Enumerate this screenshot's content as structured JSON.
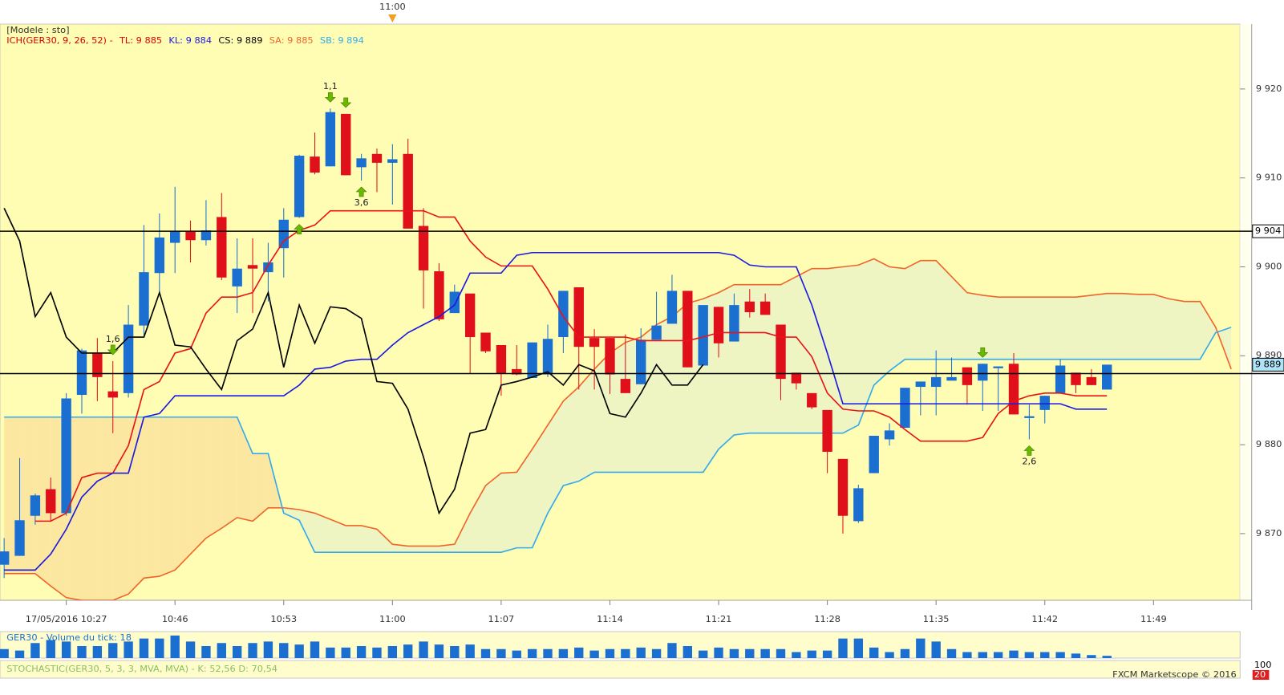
{
  "chart_data": {
    "type": "candlestick",
    "legend_lines": [
      "[Modele : sto]"
    ],
    "indicator": {
      "label": "ICH(GER30, 9, 26, 52) -",
      "color": "#d40000",
      "items": [
        {
          "text": "TL: 9 885",
          "color": "#e00000"
        },
        {
          "text": "KL: 9 884",
          "color": "#1a1ae0"
        },
        {
          "text": "CS: 9 889",
          "color": "#000000"
        },
        {
          "text": "SA: 9 885",
          "color": "#f0662a"
        },
        {
          "text": "SB: 9 894",
          "color": "#33aaee"
        }
      ]
    },
    "cursor": {
      "index": 25,
      "label": "11:00",
      "color": "#f0a020"
    },
    "categories": [
      null,
      null,
      null,
      null,
      "17/05/2016 10:27",
      null,
      null,
      null,
      null,
      null,
      null,
      "10:46",
      null,
      null,
      null,
      null,
      null,
      null,
      "10:53",
      null,
      null,
      null,
      null,
      null,
      null,
      "11:00",
      null,
      null,
      null,
      null,
      null,
      null,
      "11:07",
      null,
      null,
      null,
      null,
      null,
      null,
      "11:14",
      null,
      null,
      null,
      null,
      null,
      null,
      "11:21",
      null,
      null,
      null,
      null,
      null,
      null,
      "11:28",
      null,
      null,
      null,
      null,
      null,
      null,
      "11:35",
      null,
      null,
      null,
      null,
      null,
      null,
      "11:42",
      null,
      null,
      null,
      null,
      null,
      null,
      "11:49",
      null,
      null,
      null,
      null,
      null
    ],
    "ylim": [
      9862.5,
      9927.3
    ],
    "yticks": [
      {
        "value": 9870,
        "label": "9 870"
      },
      {
        "value": 9880,
        "label": "9 880"
      },
      {
        "value": 9890,
        "label": "9 890"
      },
      {
        "value": 9900,
        "label": "9 900"
      },
      {
        "value": 9910,
        "label": "9 910"
      },
      {
        "value": 9920,
        "label": "9 920"
      }
    ],
    "grid": false,
    "background": "#fffdb3",
    "up_color": "#1a6fd0",
    "down_color": "#e0101a",
    "open": [
      9866.5,
      9867.5,
      9872,
      9875,
      9872.3,
      9885.6,
      9890.3,
      9886,
      9885.8,
      9893.4,
      9899.3,
      9902.7,
      9904,
      9903,
      9905.6,
      9897.8,
      9900.2,
      9899.4,
      9902.1,
      9905.6,
      9912.4,
      9911.3,
      9917.2,
      9911.2,
      9912.7,
      9911.7,
      9912.7,
      9904.6,
      9899.5,
      9894.8,
      9897,
      9892.6,
      9891.2,
      9888.5,
      9887.5,
      9887.9,
      9892.1,
      9897.7,
      9892,
      9892,
      9887.4,
      9886.8,
      9891.8,
      9893.6,
      9897.3,
      9888.9,
      9895.5,
      9891.6,
      9896.1,
      9896.1,
      9893.5,
      9888.1,
      9885.8,
      9883.9,
      9878.4,
      9871.4,
      9876.8,
      9880.6,
      9881.9,
      9886.5,
      9886.5,
      9887.2,
      9888.7,
      9887.2,
      9888.6,
      9889.1,
      9883,
      9883.9,
      9885.8,
      9888.1,
      9887.6,
      9886.2,
      null,
      null,
      null,
      null,
      null,
      null,
      null,
      null
    ],
    "high": [
      9869.5,
      9878.5,
      9874.5,
      9876.3,
      9885.8,
      9890.8,
      9892,
      9889.4,
      9895.7,
      9904.7,
      9906,
      9909,
      9905.2,
      9907.5,
      9908.3,
      9903.2,
      9903.2,
      9902.7,
      9906.6,
      9912.6,
      9915.1,
      9917.8,
      9917.2,
      9912.7,
      9913.3,
      9913.8,
      9914.4,
      9906.6,
      9900.4,
      9898,
      9897,
      9892.6,
      9891.2,
      9891.2,
      9891.5,
      9893.5,
      9897.3,
      9897.7,
      9893,
      9892,
      9892.4,
      9893.1,
      9897.2,
      9899.1,
      9897.3,
      9895.7,
      9895.5,
      9897,
      9897.5,
      9897,
      9893.5,
      9888.1,
      9885.8,
      9883.9,
      9878.4,
      9875.5,
      9881,
      9882.4,
      9886.4,
      9887.1,
      9890.6,
      9889.8,
      9888.7,
      9889.1,
      9888.8,
      9890.3,
      9884.5,
      9885.5,
      9889.6,
      9888.1,
      9888.5,
      9889,
      null,
      null,
      null,
      null,
      null,
      null,
      null,
      null
    ],
    "low": [
      9865,
      9867.5,
      9871,
      9871.4,
      9872,
      9883.5,
      9884.9,
      9881.3,
      9885.3,
      9892.1,
      9897,
      9899.3,
      9900.5,
      9902.4,
      9898.5,
      9894.8,
      9894.8,
      9896.1,
      9898.8,
      9905.5,
      9910.4,
      9911.3,
      9910.3,
      9909.7,
      9908.4,
      9907,
      9904.3,
      9895.3,
      9893.9,
      9894.8,
      9888,
      9890.3,
      9885.5,
      9887.8,
      9887.5,
      9887.6,
      9890.3,
      9886.2,
      9886.2,
      9885.7,
      9885.8,
      9886.8,
      9891.8,
      9893.6,
      9888.7,
      9888.9,
      9889.8,
      9891.6,
      9894.3,
      9894.6,
      9885,
      9886.2,
      9884,
      9876.8,
      9870,
      9871.2,
      9876.8,
      9879.9,
      9881.9,
      9883.3,
      9883.3,
      9887.2,
      9884.5,
      9883.8,
      9883.8,
      9883.4,
      9880.6,
      9882.4,
      9885.8,
      9885.8,
      9886.7,
      9886.2,
      null,
      null,
      null,
      null,
      null,
      null,
      null,
      null
    ],
    "close": [
      9868,
      9871.5,
      9874.3,
      9872.3,
      9885.2,
      9890.6,
      9887.6,
      9885.3,
      9893.5,
      9899.4,
      9903.3,
      9904,
      9903,
      9904.1,
      9898.8,
      9899.8,
      9899.8,
      9900.5,
      9905.3,
      9912.5,
      9910.6,
      9917.4,
      9910.3,
      9912.2,
      9911.7,
      9912.1,
      9904.3,
      9899.6,
      9894.1,
      9897.2,
      9892.1,
      9890.5,
      9888,
      9887.9,
      9891.5,
      9891.9,
      9897.3,
      9891,
      9891,
      9887.9,
      9885.8,
      9891.8,
      9893.4,
      9897.3,
      9888.7,
      9895.7,
      9891.4,
      9895.7,
      9894.9,
      9894.6,
      9887.4,
      9886.9,
      9884.2,
      9879.2,
      9872,
      9875.1,
      9881,
      9881.6,
      9886.4,
      9887.1,
      9887.6,
      9887.6,
      9886.7,
      9889.1,
      9888.8,
      9883.4,
      9883.2,
      9885.5,
      9888.9,
      9886.7,
      9886.7,
      9889,
      null,
      null,
      null,
      null,
      null,
      null,
      null,
      null
    ],
    "cloud": {
      "bull_fill": "#eef5c3",
      "bear_fill": "#fce7a0",
      "a": {
        "color": "#f0662a",
        "values": [
          9865.5,
          9865.5,
          9865.5,
          9864.1,
          9862.8,
          9862.5,
          9862.5,
          9862.5,
          9863.2,
          9865,
          9865.2,
          9865.9,
          9867.7,
          9869.5,
          9870.6,
          9871.8,
          9871.4,
          9872.9,
          9872.9,
          9872.7,
          9872.3,
          9871.6,
          9870.9,
          9870.9,
          9870.5,
          9868.8,
          9868.6,
          9868.6,
          9868.6,
          9868.8,
          9872.3,
          9875.4,
          9876.8,
          9876.9,
          9879.5,
          9882.2,
          9884.9,
          9886.5,
          9888.5,
          9890.3,
          9891.5,
          9892.1,
          9893.5,
          9894.4,
          9895.9,
          9896.4,
          9897.1,
          9898,
          9898,
          9898,
          9898,
          9898.9,
          9899.8,
          9899.8,
          9900,
          9900.2,
          9900.9,
          9900,
          9899.8,
          9900.7,
          9900.7,
          9898.9,
          9897.1,
          9896.8,
          9896.6,
          9896.6,
          9896.6,
          9896.6,
          9896.6,
          9896.6,
          9896.8,
          9897,
          9897,
          9896.9,
          9896.9,
          9896.4,
          9896.1,
          9896.1,
          9893.2,
          9888.5
        ]
      },
      "b": {
        "color": "#33aaee",
        "values": [
          9883.1,
          9883.1,
          9883.1,
          9883.1,
          9883.1,
          9883.1,
          9883.1,
          9883.1,
          9883.1,
          9883.1,
          9883.1,
          9883.1,
          9883.1,
          9883.1,
          9883.1,
          9883.1,
          9879,
          9879,
          9872.3,
          9871.5,
          9867.9,
          9867.9,
          9867.9,
          9867.9,
          9867.9,
          9867.9,
          9867.9,
          9867.9,
          9867.9,
          9867.9,
          9867.9,
          9867.9,
          9867.9,
          9868.4,
          9868.4,
          9872.3,
          9875.4,
          9875.9,
          9876.9,
          9876.9,
          9876.9,
          9876.9,
          9876.9,
          9876.9,
          9876.9,
          9876.9,
          9879.5,
          9881.1,
          9881.3,
          9881.3,
          9881.3,
          9881.3,
          9881.3,
          9881.3,
          9881.3,
          9882.2,
          9886.7,
          9888.3,
          9889.6,
          9889.6,
          9889.6,
          9889.6,
          9889.6,
          9889.6,
          9889.6,
          9889.6,
          9889.6,
          9889.6,
          9889.6,
          9889.6,
          9889.6,
          9889.6,
          9889.6,
          9889.6,
          9889.6,
          9889.6,
          9889.6,
          9889.6,
          9892.6,
          9893.2
        ]
      }
    },
    "series": [
      {
        "color": "#e8141a",
        "values": [
          null,
          null,
          9871.4,
          9871.4,
          9872.3,
          9876.3,
          9876.8,
          9876.8,
          9879.9,
          9886.2,
          9887.1,
          9890.3,
          9890.8,
          9894.8,
          9896.6,
          9896.6,
          9897.1,
          9900.2,
          9902.9,
          9904.1,
          9904.7,
          9906.3,
          9906.3,
          9906.3,
          9906.3,
          9906.3,
          9906.3,
          9906.3,
          9905.6,
          9905.6,
          9902.9,
          9901.1,
          9900.1,
          9900.1,
          9900.1,
          9897.5,
          9894.4,
          9892.1,
          9892.1,
          9892.1,
          9892.1,
          9891.7,
          9891.7,
          9891.7,
          9891.7,
          9892.1,
          9892.6,
          9892.6,
          9892.6,
          9892.6,
          9892.1,
          9892.1,
          9889.9,
          9885.8,
          9884,
          9883.8,
          9883.8,
          9883.1,
          9881.7,
          9880.4,
          9880.4,
          9880.4,
          9880.4,
          9880.8,
          9883.5,
          9884.9,
          9885.5,
          9885.8,
          9885.8,
          9885.5,
          9885.5,
          9885.5,
          null,
          null,
          null,
          null,
          null,
          null,
          null,
          null
        ]
      },
      {
        "color": "#1a1ae0",
        "values": [
          9865.9,
          9865.9,
          9865.9,
          9867.7,
          9870.5,
          9874.1,
          9875.9,
          9876.8,
          9876.8,
          9883.1,
          9883.5,
          9885.5,
          9885.5,
          9885.5,
          9885.5,
          9885.5,
          9885.5,
          9885.5,
          9885.5,
          9886.7,
          9888.5,
          9888.7,
          9889.4,
          9889.6,
          9889.6,
          9891.2,
          9892.6,
          9893.5,
          9894.4,
          9895.7,
          9899.3,
          9899.3,
          9899.3,
          9901.3,
          9901.6,
          9901.6,
          9901.6,
          9901.6,
          9901.6,
          9901.6,
          9901.6,
          9901.6,
          9901.6,
          9901.6,
          9901.6,
          9901.6,
          9901.6,
          9901.3,
          9900.2,
          9900,
          9900,
          9900,
          9895.7,
          9890.3,
          9884.6,
          9884.6,
          9884.6,
          9884.6,
          9884.6,
          9884.6,
          9884.6,
          9884.6,
          9884.6,
          9884.6,
          9884.6,
          9884.6,
          9884.6,
          9884.6,
          9884.6,
          9884,
          9884,
          9884,
          null,
          null,
          null,
          null,
          null,
          null,
          null,
          null
        ]
      },
      {
        "color": "#000000",
        "values": [
          9906.6,
          9902.9,
          9894.4,
          9897.1,
          9892.1,
          9890.3,
          9890.3,
          9890.3,
          9892.1,
          9892.1,
          9897.1,
          9891.2,
          9891,
          9888.5,
          9886.2,
          9891.7,
          9893,
          9897.1,
          9888.7,
          9895.7,
          9891.4,
          9895.5,
          9895.3,
          9894.2,
          9887.1,
          9886.9,
          9884,
          9878.6,
          9872.3,
          9875,
          9881.3,
          9881.7,
          9886.7,
          9887.1,
          9887.6,
          9888.2,
          9886.7,
          9889,
          9888.3,
          9883.5,
          9883.1,
          9885.8,
          9889,
          9886.7,
          9886.7,
          9889,
          null,
          null,
          null,
          null,
          null,
          null,
          null,
          null,
          null,
          null,
          null,
          null,
          null,
          null,
          null,
          null,
          null,
          null,
          null,
          null,
          null,
          null,
          null,
          null,
          null,
          null,
          null,
          null,
          null,
          null,
          null,
          null,
          null,
          null
        ]
      }
    ],
    "hlines": [
      {
        "value": 9904,
        "color": "#000000"
      },
      {
        "value": 9888,
        "color": "#000000"
      }
    ],
    "price_markers": [
      {
        "value": 9904,
        "label": "9 904",
        "fill": "#ffffff",
        "color": "#000000"
      },
      {
        "value": 9889,
        "label": "9 889",
        "fill": "#aee4f8",
        "color": "#000000"
      }
    ],
    "signal_color": "#6cb800",
    "signals": [
      {
        "index": 7,
        "label": "1,6",
        "direction": "down"
      },
      {
        "index": 19,
        "direction": "up"
      },
      {
        "index": 21,
        "label": "1,1",
        "direction": "down"
      },
      {
        "index": 22,
        "direction": "down"
      },
      {
        "index": 23,
        "label": "3,6",
        "direction": "up"
      },
      {
        "index": 63,
        "direction": "down"
      },
      {
        "index": 66,
        "label": "2,6",
        "direction": "up"
      }
    ],
    "volume": {
      "label": "GER30 - Volume du tick: 18",
      "color": "#1a6fd0",
      "ylim": [
        0,
        192
      ],
      "values": [
        72,
        60,
        120,
        144,
        132,
        96,
        96,
        120,
        132,
        156,
        156,
        180,
        132,
        96,
        120,
        96,
        120,
        132,
        120,
        108,
        132,
        84,
        84,
        96,
        84,
        96,
        108,
        132,
        108,
        96,
        108,
        72,
        72,
        60,
        72,
        72,
        72,
        84,
        60,
        72,
        72,
        84,
        72,
        120,
        96,
        60,
        84,
        72,
        72,
        72,
        72,
        48,
        60,
        60,
        156,
        156,
        84,
        48,
        72,
        156,
        132,
        72,
        48,
        48,
        48,
        60,
        48,
        48,
        48,
        36,
        24,
        18,
        null,
        null,
        null,
        null,
        null,
        null,
        null,
        null
      ]
    },
    "stochastic": {
      "label": "STOCHASTIC(GER30, 5, 3, 3, MVA, MVA) - K: 52,56  D: 70,54",
      "ticks": [
        {
          "value": 100,
          "label": "100"
        },
        {
          "value": 20,
          "label": "20"
        }
      ]
    },
    "footer": "FXCM Marketscope © 2016"
  }
}
